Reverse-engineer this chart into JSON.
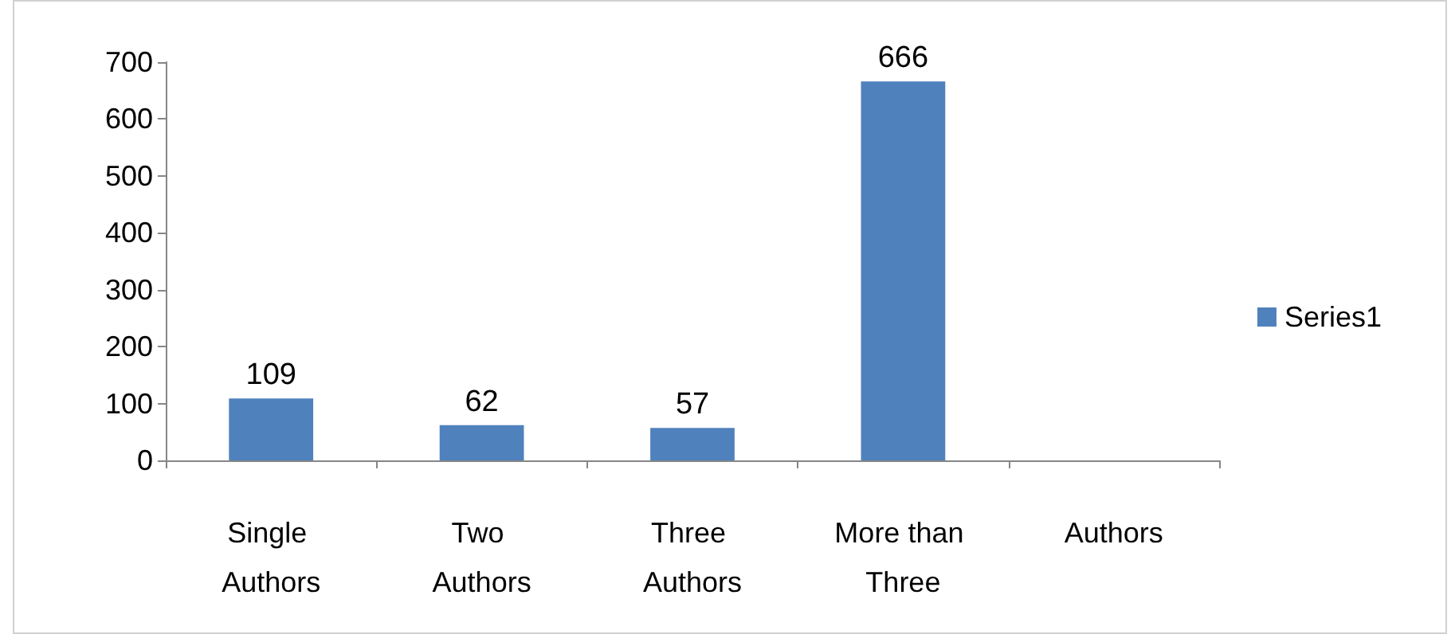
{
  "chart_data": {
    "type": "bar",
    "categories": [
      "Single Authors",
      "Two Authors",
      "Three Authors",
      "More than Three",
      "Authors"
    ],
    "series": [
      {
        "name": "Series1",
        "color": "#4f81bd",
        "values": [
          109,
          62,
          57,
          666,
          null
        ]
      }
    ],
    "ylim": [
      0,
      700
    ],
    "yticks": [
      0,
      100,
      200,
      300,
      400,
      500,
      600,
      700
    ],
    "grid": false,
    "legend": "right",
    "data_labels": true
  }
}
